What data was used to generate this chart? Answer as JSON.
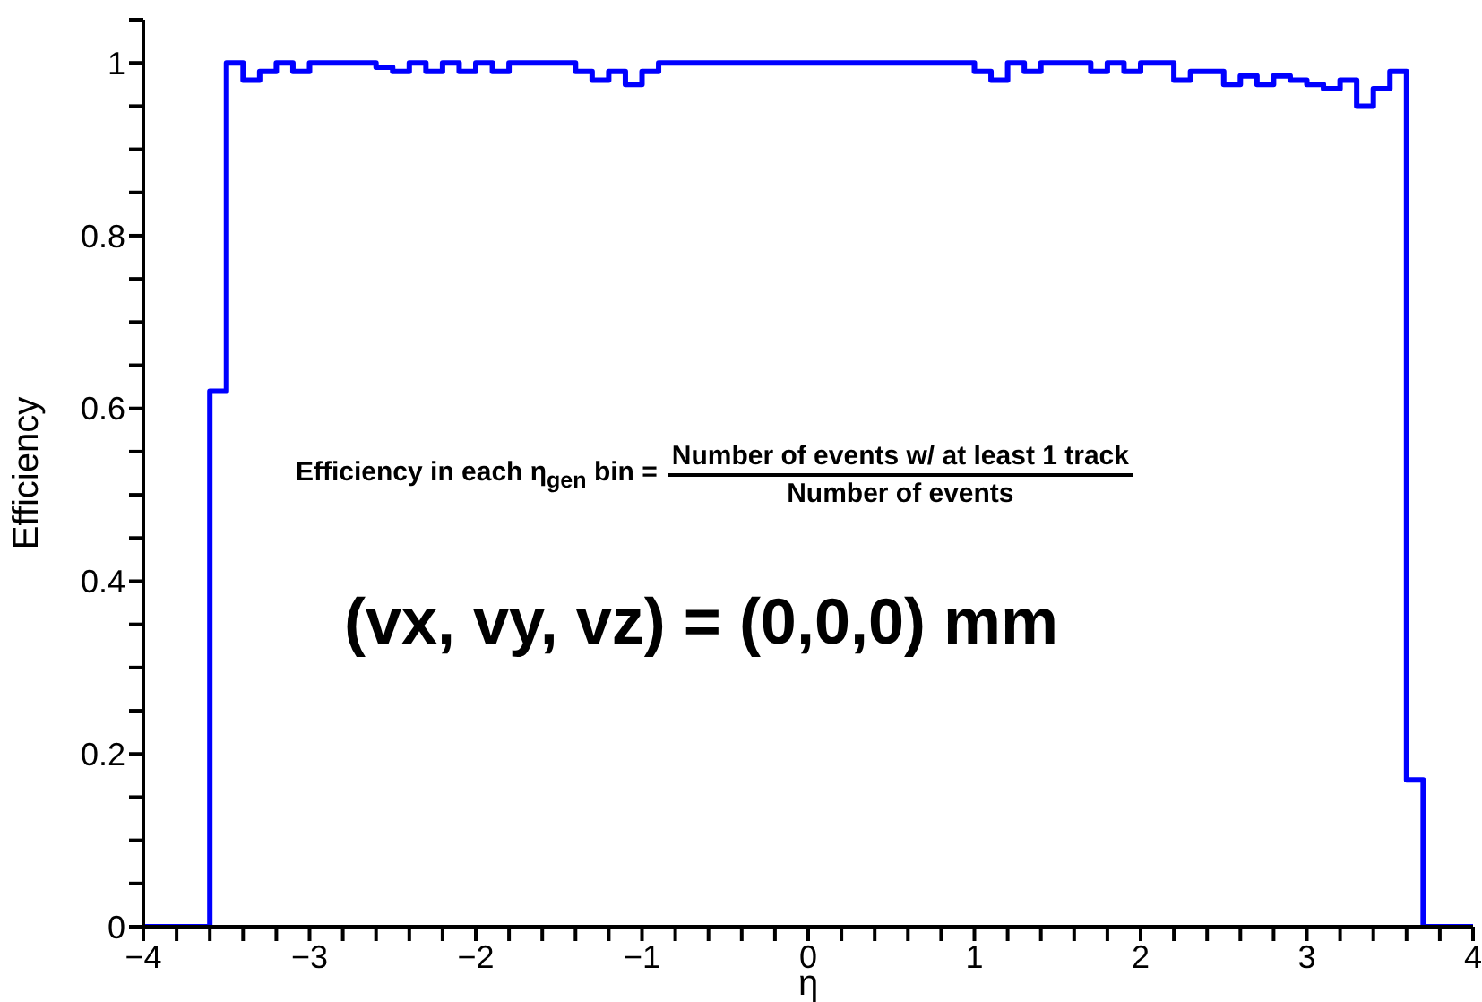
{
  "chart_data": {
    "type": "histogram",
    "xlabel": "η",
    "ylabel": "Efficiency",
    "annotations": [
      "Efficiency in each η$_{gen}$ bin =",
      "Number of events w/ at least 1 track",
      "Number of events",
      "(vx, vy, vz) = (0,0,0) mm"
    ],
    "bins": [
      -4,
      -3.9,
      -3.8,
      -3.7,
      -3.6,
      -3.5,
      -3.4,
      -3.3,
      -3.2,
      -3.1,
      -3,
      -2.9,
      -2.8,
      -2.7,
      -2.6,
      -2.5,
      -2.4,
      -2.3,
      -2.2,
      -2.1,
      -2,
      -1.9,
      -1.8,
      -1.7,
      -1.6,
      -1.5,
      -1.4,
      -1.3,
      -1.2,
      -1.1,
      -1,
      -0.9,
      -0.8,
      -0.7,
      -0.6,
      -0.5,
      -0.4,
      -0.3,
      -0.2,
      -0.1,
      0,
      0.1,
      0.2,
      0.3,
      0.4,
      0.5,
      0.6,
      0.7,
      0.8,
      0.9,
      1,
      1.1,
      1.2,
      1.3,
      1.4,
      1.5,
      1.6,
      1.7,
      1.8,
      1.9,
      2,
      2.1,
      2.2,
      2.3,
      2.4,
      2.5,
      2.6,
      2.7,
      2.8,
      2.9,
      3,
      3.1,
      3.2,
      3.3,
      3.4,
      3.5,
      3.6,
      3.7,
      3.8,
      3.9,
      4
    ],
    "values": [
      0,
      0,
      0,
      0,
      0.62,
      1,
      0.98,
      0.99,
      1,
      0.99,
      1,
      1,
      1,
      1,
      0.995,
      0.99,
      1,
      0.99,
      1,
      0.99,
      1,
      0.99,
      1,
      1,
      1,
      1,
      0.99,
      0.98,
      0.99,
      0.975,
      0.99,
      1,
      1,
      1,
      1,
      1,
      1,
      1,
      1,
      1,
      1,
      1,
      1,
      1,
      1,
      1,
      1,
      1,
      1,
      1,
      0.99,
      0.98,
      1,
      0.99,
      1,
      1,
      1,
      0.99,
      1,
      0.99,
      1,
      1,
      0.98,
      0.99,
      0.99,
      0.975,
      0.985,
      0.975,
      0.985,
      0.98,
      0.975,
      0.97,
      0.98,
      0.95,
      0.97,
      0.99,
      0.17,
      0,
      0,
      0
    ],
    "color": "#0000ff",
    "xlim": [
      -4,
      4
    ],
    "xticks": [
      -4,
      {
        "value": -3.8,
        "label": null
      },
      {
        "value": -3.6,
        "label": null
      },
      {
        "value": -3.4,
        "label": null
      },
      {
        "value": -3.2,
        "label": null
      },
      -3,
      {
        "value": -2.8,
        "label": null
      },
      {
        "value": -2.6,
        "label": null
      },
      {
        "value": -2.4,
        "label": null
      },
      {
        "value": -2.2,
        "label": null
      },
      -2,
      {
        "value": -1.8,
        "label": null
      },
      {
        "value": -1.6,
        "label": null
      },
      {
        "value": -1.4,
        "label": null
      },
      {
        "value": -1.2,
        "label": null
      },
      -1,
      {
        "value": -0.8,
        "label": null
      },
      {
        "value": -0.6,
        "label": null
      },
      {
        "value": -0.4,
        "label": null
      },
      {
        "value": -0.2,
        "label": null
      },
      0,
      {
        "value": 0.2,
        "label": null
      },
      {
        "value": 0.4,
        "label": null
      },
      {
        "value": 0.6,
        "label": null
      },
      {
        "value": 0.8,
        "label": null
      },
      1,
      {
        "value": 1.2,
        "label": null
      },
      {
        "value": 1.4,
        "label": null
      },
      {
        "value": 1.6,
        "label": null
      },
      {
        "value": 1.8,
        "label": null
      },
      2,
      {
        "value": 2.2,
        "label": null
      },
      {
        "value": 2.4,
        "label": null
      },
      {
        "value": 2.6,
        "label": null
      },
      {
        "value": 2.8,
        "label": null
      },
      3,
      {
        "value": 3.2,
        "label": null
      },
      {
        "value": 3.4,
        "label": null
      },
      {
        "value": 3.6,
        "label": null
      },
      {
        "value": 3.8,
        "label": null
      },
      4
    ],
    "ylim": [
      0,
      1.05
    ],
    "yticks": [
      0,
      {
        "value": 0.05,
        "label": null
      },
      {
        "value": 0.1,
        "label": null
      },
      {
        "value": 0.15,
        "label": null
      },
      0.2,
      {
        "value": 0.25,
        "label": null
      },
      {
        "value": 0.3,
        "label": null
      },
      {
        "value": 0.35,
        "label": null
      },
      0.4,
      {
        "value": 0.45,
        "label": null
      },
      {
        "value": 0.5,
        "label": null
      },
      {
        "value": 0.55,
        "label": null
      },
      0.6,
      {
        "value": 0.65,
        "label": null
      },
      {
        "value": 0.7,
        "label": null
      },
      {
        "value": 0.75,
        "label": null
      },
      0.8,
      {
        "value": 0.85,
        "label": null
      },
      {
        "value": 0.9,
        "label": null
      },
      {
        "value": 0.95,
        "label": null
      },
      1,
      {
        "value": 1.05,
        "label": null
      }
    ],
    "grid": false
  }
}
